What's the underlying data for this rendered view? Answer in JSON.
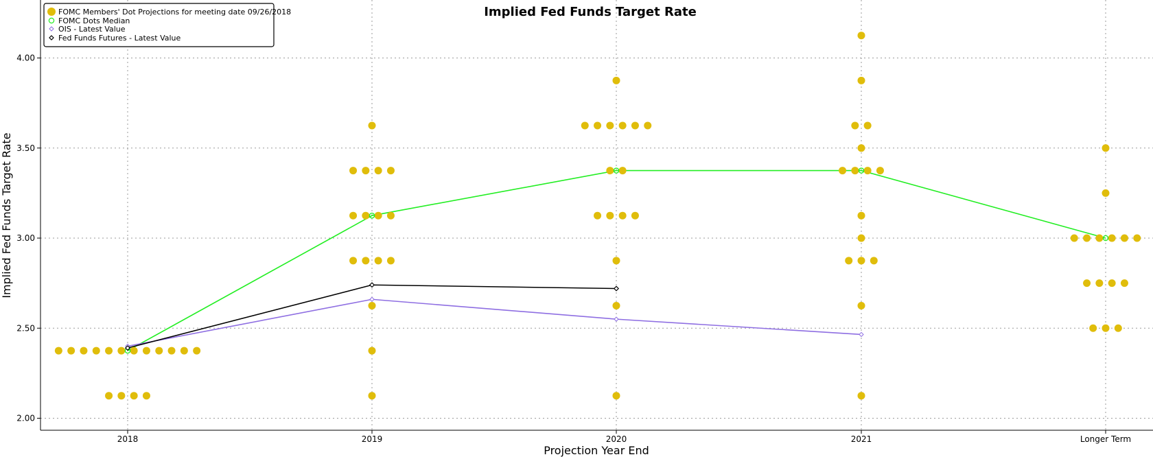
{
  "chart_data": {
    "type": "scatter",
    "title": "Implied Fed Funds Target Rate",
    "xlabel": "Projection Year End",
    "ylabel": "Implied Fed Funds Target Rate",
    "categories": [
      "2018",
      "2019",
      "2020",
      "2021",
      "Longer Term"
    ],
    "ylim": [
      1.96,
      4.24
    ],
    "yticks": [
      "2.00",
      "2.50",
      "3.00",
      "3.50",
      "4.00"
    ],
    "grid": true,
    "legend_position": "top-left",
    "colors": {
      "dots": "#e0bd0b",
      "median": "#22ee22",
      "ois": "#8e6ee2",
      "futures": "#000000"
    },
    "legend": [
      "FOMC Members' Dot Projections for meeting date 09/26/2018",
      "FOMC Dots Median",
      "OIS - Latest Value",
      "Fed Funds Futures - Latest Value"
    ],
    "dot_projections": [
      {
        "category": "2018",
        "groups": [
          {
            "rate": 2.375,
            "count": 12
          },
          {
            "rate": 2.125,
            "count": 4
          }
        ]
      },
      {
        "category": "2019",
        "groups": [
          {
            "rate": 3.625,
            "count": 1
          },
          {
            "rate": 3.375,
            "count": 4
          },
          {
            "rate": 3.125,
            "count": 4
          },
          {
            "rate": 2.875,
            "count": 4
          },
          {
            "rate": 2.625,
            "count": 1
          },
          {
            "rate": 2.375,
            "count": 1
          },
          {
            "rate": 2.125,
            "count": 1
          }
        ]
      },
      {
        "category": "2020",
        "groups": [
          {
            "rate": 3.875,
            "count": 1
          },
          {
            "rate": 3.625,
            "count": 6
          },
          {
            "rate": 3.375,
            "count": 2
          },
          {
            "rate": 3.125,
            "count": 4
          },
          {
            "rate": 2.875,
            "count": 1
          },
          {
            "rate": 2.625,
            "count": 1
          },
          {
            "rate": 2.125,
            "count": 1
          }
        ]
      },
      {
        "category": "2021",
        "groups": [
          {
            "rate": 4.125,
            "count": 1
          },
          {
            "rate": 3.875,
            "count": 1
          },
          {
            "rate": 3.625,
            "count": 2
          },
          {
            "rate": 3.5,
            "count": 1
          },
          {
            "rate": 3.375,
            "count": 4
          },
          {
            "rate": 3.125,
            "count": 1
          },
          {
            "rate": 3.0,
            "count": 1
          },
          {
            "rate": 2.875,
            "count": 3
          },
          {
            "rate": 2.625,
            "count": 1
          },
          {
            "rate": 2.125,
            "count": 1
          }
        ]
      },
      {
        "category": "Longer Term",
        "groups": [
          {
            "rate": 3.5,
            "count": 1
          },
          {
            "rate": 3.25,
            "count": 1
          },
          {
            "rate": 3.0,
            "count": 6
          },
          {
            "rate": 2.75,
            "count": 4
          },
          {
            "rate": 2.5,
            "count": 3
          }
        ]
      }
    ],
    "series": [
      {
        "name": "FOMC Dots Median",
        "values": [
          2.375,
          3.125,
          3.375,
          3.375,
          3.0
        ]
      },
      {
        "name": "OIS - Latest Value",
        "values": [
          2.4,
          2.66,
          2.55,
          2.465,
          null
        ]
      },
      {
        "name": "Fed Funds Futures - Latest Value",
        "values": [
          2.39,
          2.74,
          2.72,
          null,
          null
        ]
      }
    ]
  }
}
